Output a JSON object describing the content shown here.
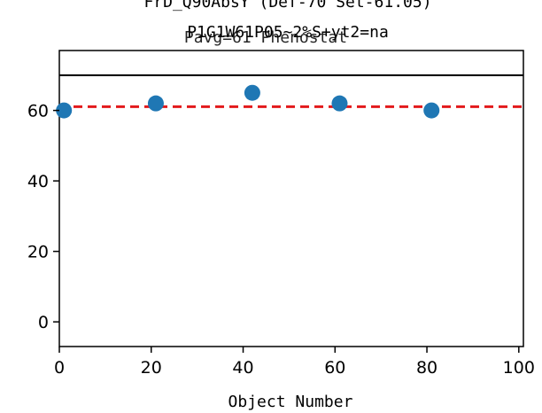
{
  "chart_data": {
    "type": "scatter",
    "title_lines": [
      "FrD_Q90AbsY (Def-70 Set-61.05)",
      "P1G1W61P05~2%S+yt2=na",
      "Pavg=61 Phenostat"
    ],
    "xlabel": "Object Number",
    "ylabel": "",
    "xlim": [
      0,
      101
    ],
    "ylim": [
      -7,
      77
    ],
    "x_ticks": [
      "0",
      "20",
      "40",
      "60",
      "80",
      "100"
    ],
    "x_tick_values": [
      0,
      20,
      40,
      60,
      80,
      100
    ],
    "y_ticks": [
      "0",
      "20",
      "40",
      "60"
    ],
    "y_tick_values": [
      0,
      20,
      40,
      60
    ],
    "series": [
      {
        "x": [
          1,
          21,
          42,
          61,
          81
        ],
        "y": [
          60,
          62,
          65,
          62,
          60
        ],
        "color": "#1f77b4"
      }
    ],
    "reference_lines": [
      {
        "y": 61.05,
        "style": "dashed",
        "color": "#e31a1c"
      },
      {
        "y": 70,
        "style": "solid",
        "color": "#000000"
      }
    ],
    "grid": false
  }
}
